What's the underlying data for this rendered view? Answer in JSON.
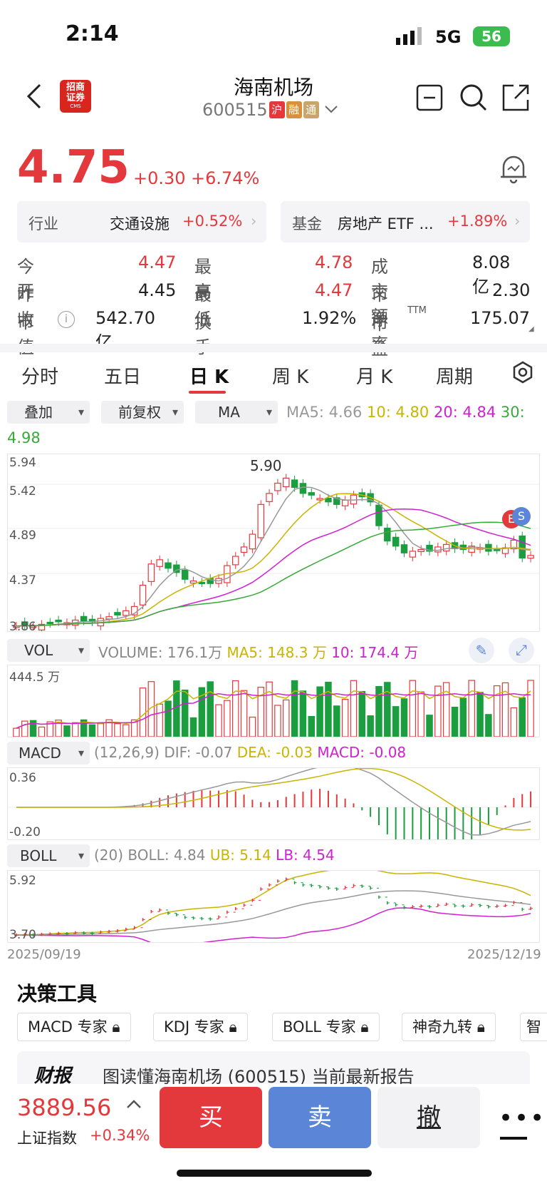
{
  "status_bar": {
    "time": "2:14",
    "network": "5G",
    "battery": "56"
  },
  "header": {
    "broker_logo": "招商证券",
    "broker_logo_sub": "CMS",
    "stock_name": "海南机场",
    "stock_code": "600515",
    "tags": [
      {
        "label": "沪",
        "color": "#e4393c"
      },
      {
        "label": "融",
        "color": "#d98f3b"
      },
      {
        "label": "通",
        "color": "#c9a46b"
      }
    ]
  },
  "quote": {
    "price": "4.75",
    "change": "+0.30",
    "change_pct": "+6.74%"
  },
  "industry_card": {
    "label": "行业",
    "name": "交通设施",
    "pct": "+0.52%"
  },
  "fund_card": {
    "label": "基金",
    "name": "房地产 ETF ...",
    "pct": "+1.89%"
  },
  "stats": {
    "open_label": "今开",
    "open": "4.47",
    "high_label": "最高",
    "high": "4.78",
    "amount_label": "成交额",
    "amount": "8.08亿",
    "prev_label": "昨收",
    "prev": "4.45",
    "low_label": "最低",
    "low": "4.47",
    "pb_label": "市净率",
    "pb": "2.30",
    "mcap_label": "市值",
    "mcap": "542.70亿",
    "turnover_label": "换手",
    "turnover": "1.92%",
    "pe_label": "市盈",
    "pe_sup": "TTM",
    "pe": "175.07"
  },
  "tabs": [
    "分时",
    "五日",
    "日 K",
    "周 K",
    "月 K",
    "周期"
  ],
  "selectors": {
    "overlay": "叠加",
    "adjust": "前复权",
    "indicator": "MA"
  },
  "ma_legend": {
    "ma5": "MA5: 4.66",
    "ma10": "10: 4.80",
    "ma20": "20: 4.84",
    "ma30": "30:",
    "ma30_val": "4.98"
  },
  "kline": {
    "y_top": "5.94",
    "y2": "5.42",
    "y3": "4.89",
    "y4": "4.37",
    "y_bottom": "3.86",
    "peak": "5.90"
  },
  "vol": {
    "selector": "VOL",
    "volume": "VOLUME: 176.1万",
    "ma5": "MA5: 148.3 万",
    "ma10": "10: 174.4 万",
    "y_top": "444.5 万"
  },
  "macd": {
    "selector": "MACD",
    "params": "(12,26,9)",
    "dif": "DIF: -0.07",
    "dea": "DEA: -0.03",
    "macd": "MACD: -0.08",
    "y_top": "0.36",
    "y_bottom": "-0.20"
  },
  "boll": {
    "selector": "BOLL",
    "params": "(20)",
    "boll": "BOLL: 4.84",
    "ub": "UB: 5.14",
    "lb": "LB: 4.54",
    "y_top": "5.92",
    "y_bottom": "3.70"
  },
  "dates": {
    "start": "2025/09/19",
    "end": "2025/12/19"
  },
  "tools": {
    "title": "决策工具",
    "items": [
      "MACD 专家",
      "KDJ 专家",
      "BOLL 专家",
      "神奇九转",
      "智"
    ]
  },
  "report": {
    "brand": "财报",
    "text": "图读懂海南机场 (600515) 当前最新报告"
  },
  "index": {
    "value": "3889.56",
    "name": "上证指数",
    "pct": "+0.34%"
  },
  "actions": {
    "buy": "买",
    "sell": "卖",
    "cancel": "撤"
  },
  "colors": {
    "up": "#e4393c",
    "down": "#1a9e3f",
    "sell_btn": "#5b85d6"
  }
}
